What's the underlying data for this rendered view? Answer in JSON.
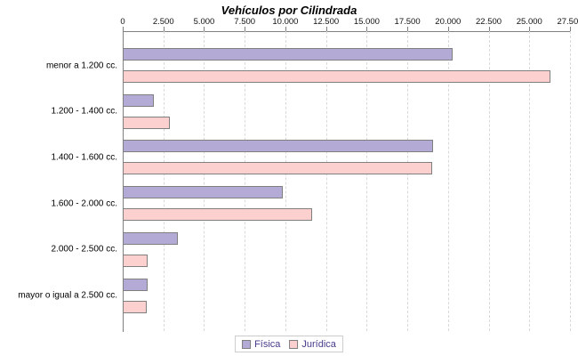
{
  "chart_data": {
    "type": "bar",
    "orientation": "horizontal",
    "title": "Vehículos por Cilindrada",
    "categories": [
      "menor a 1.200 cc.",
      "1.200 - 1.400 cc.",
      "1.400 - 1.600 cc.",
      "1.600 - 2.000 cc.",
      "2.000 - 2.500 cc.",
      "mayor o igual a 2.500 cc."
    ],
    "series": [
      {
        "name": "Física",
        "color": "#b4aad6",
        "values": [
          20300,
          1900,
          19100,
          9850,
          3400,
          1550
        ]
      },
      {
        "name": "Jurídica",
        "color": "#fdd0d0",
        "values": [
          26300,
          2900,
          19050,
          11650,
          1550,
          1450
        ]
      }
    ],
    "xlim": [
      0,
      27500
    ],
    "x_tick_values": [
      0,
      2500,
      5000,
      7500,
      10000,
      12500,
      15000,
      17500,
      20000,
      22500,
      25000,
      27500
    ],
    "x_tick_labels": [
      "0",
      "2.500",
      "5.000",
      "7.500",
      "10.000",
      "12.500",
      "15.000",
      "17.500",
      "20.000",
      "22.500",
      "25.000",
      "27.500"
    ],
    "grid": "vertical-dashed",
    "legend_position": "bottom",
    "bar_border_color": "#7f7f7f",
    "axis_color": "#808080",
    "gridline_color": "#d9d9d9",
    "legend_text_color": "#473a8a"
  }
}
